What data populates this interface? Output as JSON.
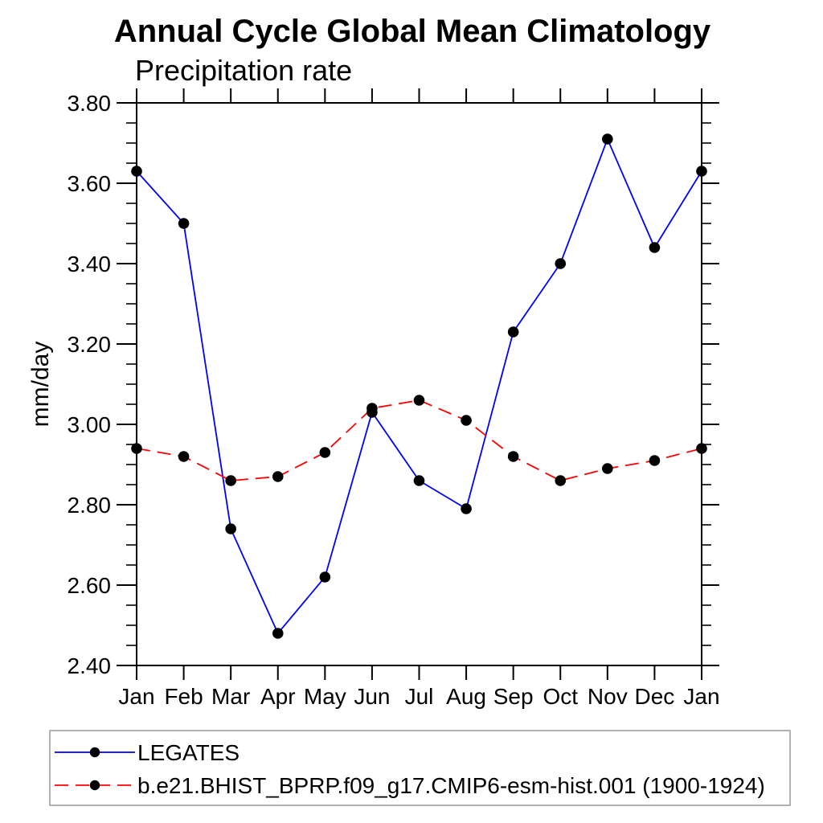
{
  "title": "Annual Cycle Global Mean Climatology",
  "subtitle": "Precipitation rate",
  "colors": {
    "background": "#ffffff",
    "axis": "#000000",
    "marker": "#000000",
    "legend_border": "#999999",
    "series_blue": "#0000ff",
    "series_red": "#ff0000"
  },
  "chart_data": {
    "type": "line",
    "title": "Annual Cycle Global Mean Climatology",
    "subtitle": "Precipitation rate",
    "ylabel": "mm/day",
    "xlabel": "",
    "categories": [
      "Jan",
      "Feb",
      "Mar",
      "Apr",
      "May",
      "Jun",
      "Jul",
      "Aug",
      "Sep",
      "Oct",
      "Nov",
      "Dec",
      "Jan"
    ],
    "series": [
      {
        "name": "LEGATES",
        "color": "#0000ff",
        "line_style": "solid",
        "marker": "filled-circle",
        "marker_color": "#000000",
        "values": [
          3.63,
          3.5,
          2.74,
          2.48,
          2.62,
          3.03,
          2.86,
          2.79,
          3.23,
          3.4,
          3.71,
          3.44,
          3.63
        ]
      },
      {
        "name": "b.e21.BHIST_BPRP.f09_g17.CMIP6-esm-hist.001 (1900-1924)",
        "color": "#ff0000",
        "line_style": "dashed",
        "marker": "filled-circle",
        "marker_color": "#000000",
        "values": [
          2.94,
          2.92,
          2.86,
          2.87,
          2.93,
          3.04,
          3.06,
          3.01,
          2.92,
          2.86,
          2.89,
          2.91,
          2.94
        ]
      }
    ],
    "ylim": [
      2.4,
      3.8
    ],
    "ytick_step": 0.2,
    "yminor_step": 0.05,
    "ytick_labels": [
      "2.40",
      "2.60",
      "2.80",
      "3.00",
      "3.20",
      "3.40",
      "3.60",
      "3.80"
    ],
    "grid": false,
    "legend_position": "bottom"
  }
}
